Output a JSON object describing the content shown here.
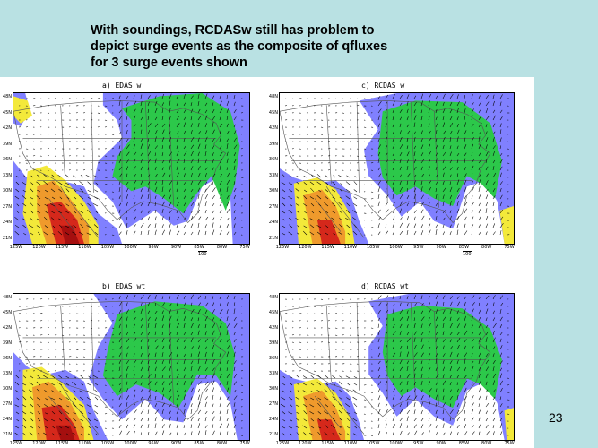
{
  "slide": {
    "title_lines": [
      "With soundings, RCDASw still has problem to",
      "depict surge events as the composite of qfluxes",
      "for 3 surge events shown"
    ],
    "page_number": "23"
  },
  "panels": [
    {
      "id": "a",
      "label": "a)  EDAS w",
      "ref_vector": "100"
    },
    {
      "id": "c",
      "label": "c)  RCDAS w",
      "ref_vector": "100"
    },
    {
      "id": "b",
      "label": "b)  EDAS wt",
      "ref_vector": ""
    },
    {
      "id": "d",
      "label": "d)  RCDAS wt",
      "ref_vector": ""
    }
  ],
  "axes": {
    "lat_ticks": [
      "48N",
      "45N",
      "42N",
      "39N",
      "36N",
      "33N",
      "30N",
      "27N",
      "24N",
      "21N"
    ],
    "lon_ticks": [
      "125W",
      "120W",
      "115W",
      "110W",
      "105W",
      "100W",
      "95W",
      "90W",
      "85W",
      "80W",
      "75W"
    ]
  },
  "colors": {
    "background": "#b9e1e3",
    "purple": "#8080ff",
    "green": "#2cc84a",
    "yellow": "#f3e93a",
    "orange": "#ef9a2c",
    "red": "#d5281b",
    "darkred": "#a50f0f"
  }
}
